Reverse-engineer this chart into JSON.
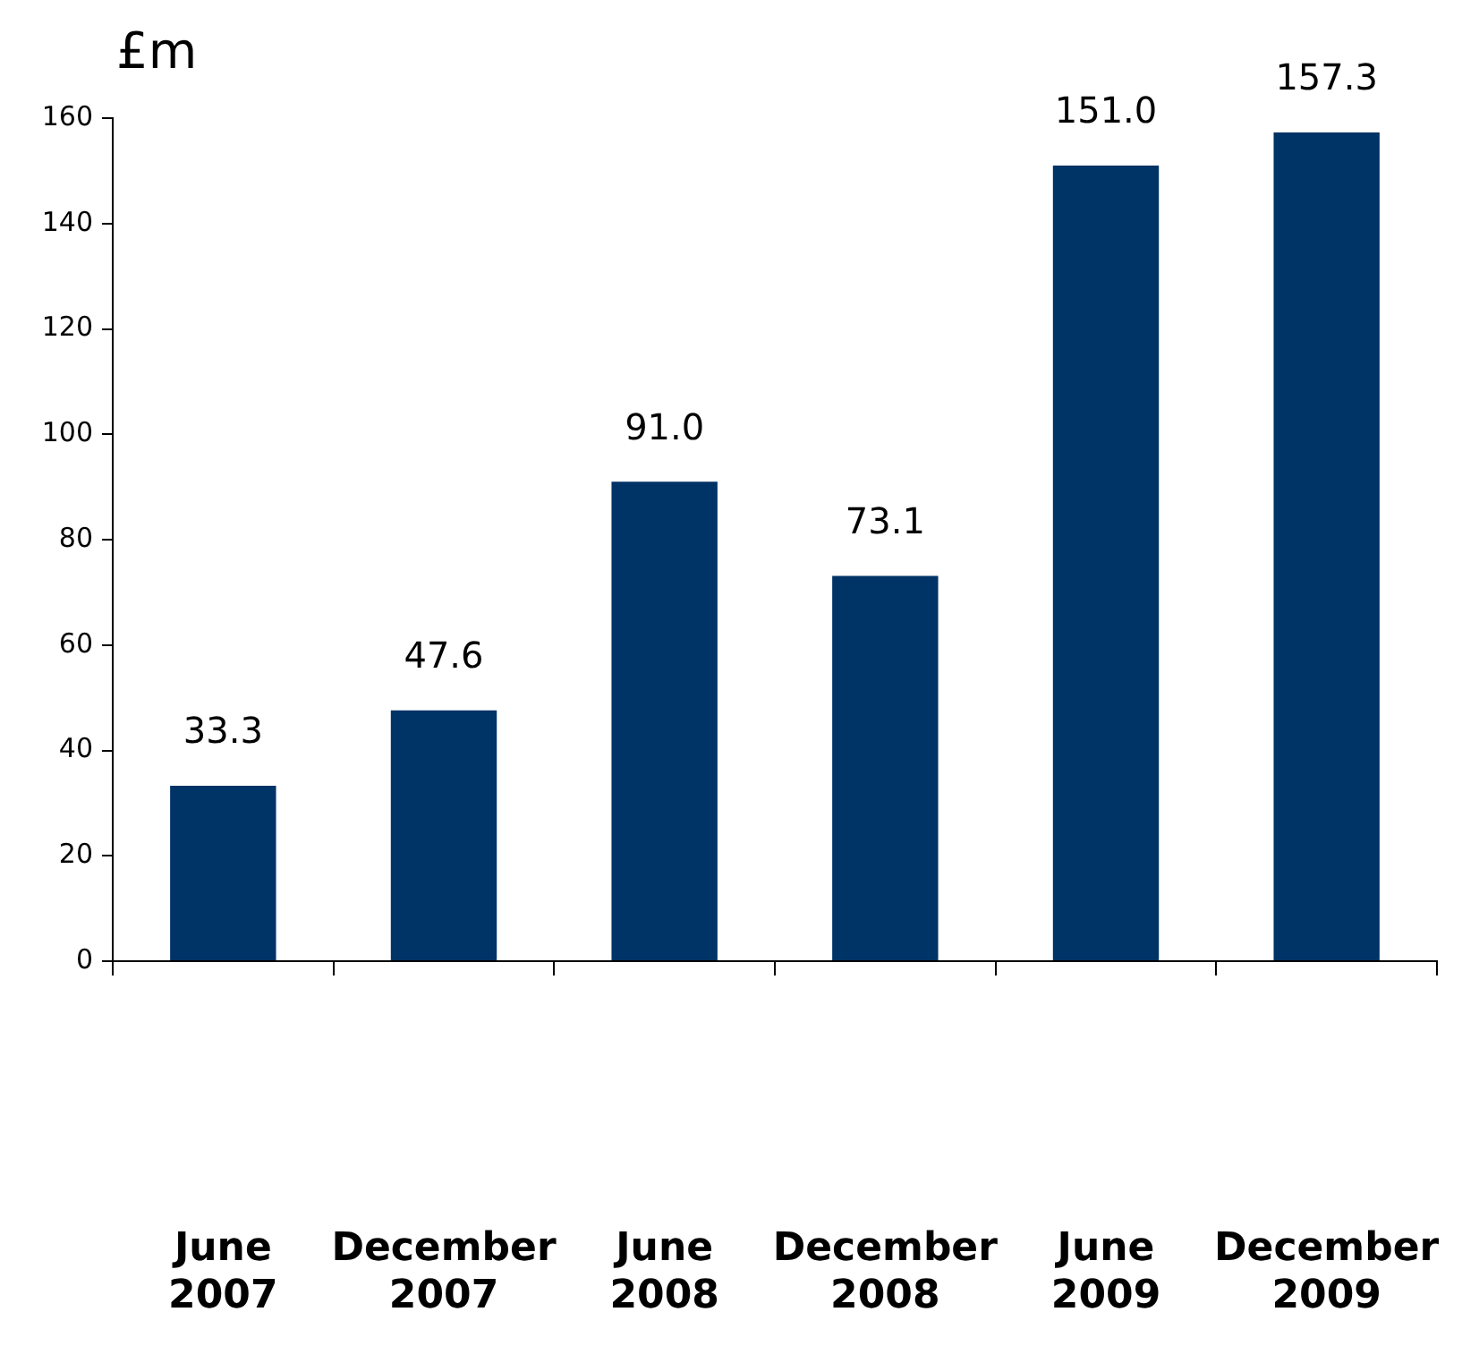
{
  "chart_data": {
    "type": "bar",
    "ylabel": "£m",
    "categories": [
      "June 2007",
      "December 2007",
      "June 2008",
      "December 2008",
      "June 2009",
      "December 2009"
    ],
    "values": [
      33.3,
      47.6,
      91.0,
      73.1,
      151.0,
      157.3
    ],
    "value_labels": [
      "33.3",
      "47.6",
      "91.0",
      "73.1",
      "151.0",
      "157.3"
    ],
    "color": "#003366",
    "ylim": [
      0,
      160
    ],
    "yticks": [
      0,
      20,
      40,
      60,
      80,
      100,
      120,
      140,
      160
    ]
  }
}
